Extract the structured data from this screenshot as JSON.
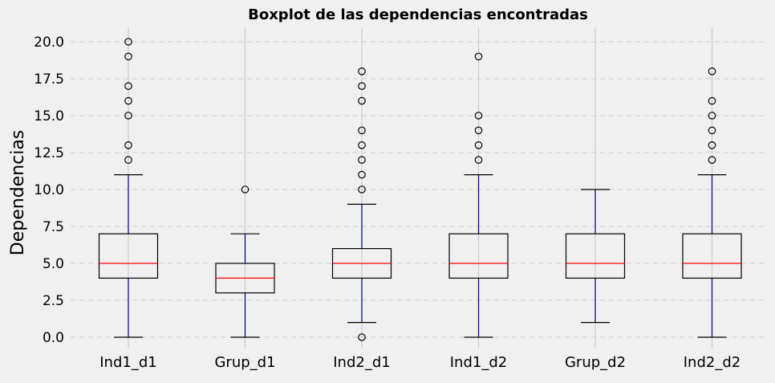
{
  "chart_data": {
    "type": "boxplot",
    "title": "Boxplot de las dependencias encontradas",
    "xlabel": "",
    "ylabel": "Dependencias",
    "ylim": [
      -0.8,
      21
    ],
    "yticks": [
      0.0,
      2.5,
      5.0,
      7.5,
      10.0,
      12.5,
      15.0,
      17.5,
      20.0
    ],
    "ytick_labels": [
      "0.0",
      "2.5",
      "5.0",
      "7.5",
      "10.0",
      "12.5",
      "15.0",
      "17.5",
      "20.0"
    ],
    "grid": true,
    "categories": [
      "Ind1_d1",
      "Grup_d1",
      "Ind2_d1",
      "Ind1_d2",
      "Grup_d2",
      "Ind2_d2"
    ],
    "boxes": [
      {
        "category": "Ind1_d1",
        "whisker_low": 0,
        "q1": 4,
        "median": 5,
        "q3": 7,
        "whisker_high": 11,
        "outliers": [
          12,
          13,
          15,
          16,
          17,
          19,
          20
        ]
      },
      {
        "category": "Grup_d1",
        "whisker_low": 0,
        "q1": 3,
        "median": 4,
        "q3": 5,
        "whisker_high": 7,
        "outliers": [
          10
        ]
      },
      {
        "category": "Ind2_d1",
        "whisker_low": 1,
        "q1": 4,
        "median": 5,
        "q3": 6,
        "whisker_high": 9,
        "outliers": [
          0,
          10,
          11,
          12,
          13,
          14,
          16,
          17,
          18
        ]
      },
      {
        "category": "Ind1_d2",
        "whisker_low": 0,
        "q1": 4,
        "median": 5,
        "q3": 7,
        "whisker_high": 11,
        "outliers": [
          12,
          13,
          14,
          15,
          19
        ]
      },
      {
        "category": "Grup_d2",
        "whisker_low": 1,
        "q1": 4,
        "median": 5,
        "q3": 7,
        "whisker_high": 10,
        "outliers": []
      },
      {
        "category": "Ind2_d2",
        "whisker_low": 0,
        "q1": 4,
        "median": 5,
        "q3": 7,
        "whisker_high": 11,
        "outliers": [
          12,
          13,
          14,
          15,
          16,
          18
        ]
      }
    ],
    "colors": {
      "background": "#f0f0f0",
      "grid": "#cbcbcb",
      "box": "#000000",
      "whisker": "#000080",
      "median": "#ff0000",
      "text": "#000000"
    }
  }
}
